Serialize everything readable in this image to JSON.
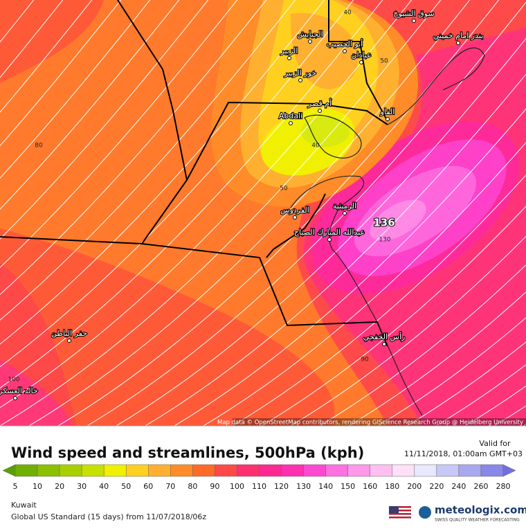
{
  "map": {
    "attribution": "Map data © OpenStreetMap contributors, rendering GIScience Research Group @ Heidelberg University",
    "peak_label": "136",
    "contour_labels": [
      40,
      50,
      40,
      50,
      80,
      130,
      90,
      100
    ],
    "places": [
      "سوق الشيوخ",
      "الجبايش",
      "الزبير",
      "أبو الخصيب",
      "عبادان",
      "بندر امام خميني",
      "خور الزبير",
      "أم قصر",
      "Abdali",
      "الفاو",
      "الرميثية",
      "الفردوس",
      "عبدالله المبارك الصباح",
      "حفر الباطن",
      "رأس الخفجي",
      "خالد العسكرية"
    ]
  },
  "legend": {
    "title": "Wind speed and streamlines, 500hPa (kph)",
    "valid_label": "Valid for",
    "valid_time": "11/11/2018, 01:00am GMT+03",
    "ticks": [
      5,
      10,
      20,
      30,
      40,
      50,
      60,
      70,
      80,
      90,
      100,
      110,
      120,
      130,
      140,
      150,
      160,
      180,
      200,
      220,
      240,
      260,
      280
    ],
    "colors": [
      "#5aa000",
      "#70b000",
      "#8cc000",
      "#a8d000",
      "#c8e000",
      "#f0f000",
      "#ffd020",
      "#ffb030",
      "#ff8c28",
      "#ff6a28",
      "#ff4848",
      "#ff3070",
      "#ff2890",
      "#ff30b0",
      "#ff48d0",
      "#ff70e0",
      "#ff98e8",
      "#ffc0f0",
      "#ffe0f8",
      "#e8e8ff",
      "#c8c8f8",
      "#a8a8f0",
      "#8888e8",
      "#7070e0"
    ]
  },
  "footer": {
    "region": "Kuwait",
    "model": "Global US Standard (15 days) from 11/07/2018/06z",
    "brand": "meteologix.com",
    "tagline": "SWISS QUALITY WEATHER FORECASTING"
  }
}
